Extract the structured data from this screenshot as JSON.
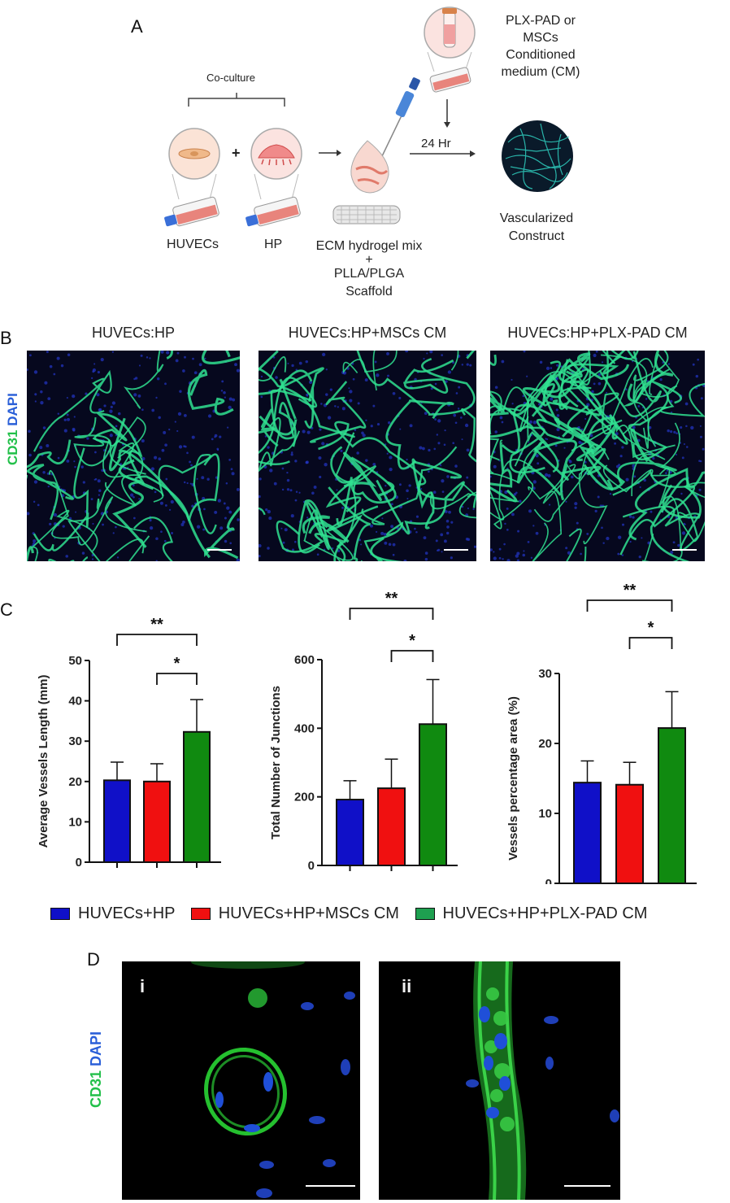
{
  "panels": {
    "a": "A",
    "b": "B",
    "c": "C",
    "d": "D"
  },
  "schematic": {
    "co_culture": "Co-culture",
    "huvecs": "HUVECs",
    "hp": "HP",
    "plus": "+",
    "ecm_line1": "ECM hydrogel mix",
    "ecm_line2": "+",
    "ecm_line3": "PLLA/PLGA",
    "ecm_line4": "Scaffold",
    "cm_line1": "PLX-PAD or",
    "cm_line2": "MSCs",
    "cm_line3": "Conditioned",
    "cm_line4": "medium (CM)",
    "time": "24 Hr",
    "result_line1": "Vascularized",
    "result_line2": "Construct"
  },
  "images_b": {
    "stain_green": "CD31",
    "stain_blue": "DAPI",
    "titles": [
      "HUVECs:HP",
      "HUVECs:HP+MSCs CM",
      "HUVECs:HP+PLX-PAD CM"
    ]
  },
  "chart_data": [
    {
      "type": "bar",
      "ylabel": "Average Vessels Length (mm)",
      "ylim": [
        0,
        50
      ],
      "yticks": [
        0,
        10,
        20,
        30,
        40,
        50
      ],
      "categories": [
        "HUVECs+HP",
        "HUVECs+HP+MSCs CM",
        "HUVECs+HP+PLX-PAD CM"
      ],
      "values": [
        20.3,
        20.0,
        32.3
      ],
      "errors": [
        4.5,
        4.4,
        8.0
      ],
      "significance": [
        {
          "from": 0,
          "to": 2,
          "label": "**"
        },
        {
          "from": 1,
          "to": 2,
          "label": "*"
        }
      ]
    },
    {
      "type": "bar",
      "ylabel": "Total Number of Junctions",
      "ylim": [
        0,
        600
      ],
      "yticks": [
        0,
        200,
        400,
        600
      ],
      "categories": [
        "HUVECs+HP",
        "HUVECs+HP+MSCs CM",
        "HUVECs+HP+PLX-PAD CM"
      ],
      "values": [
        192,
        225,
        412
      ],
      "errors": [
        55,
        85,
        130
      ],
      "significance": [
        {
          "from": 0,
          "to": 2,
          "label": "**"
        },
        {
          "from": 1,
          "to": 2,
          "label": "*"
        }
      ]
    },
    {
      "type": "bar",
      "ylabel": "Vessels percentage area (%)",
      "ylim": [
        0,
        30
      ],
      "yticks": [
        0,
        10,
        20,
        30
      ],
      "categories": [
        "HUVECs+HP",
        "HUVECs+HP+MSCs CM",
        "HUVECs+HP+PLX-PAD CM"
      ],
      "values": [
        14.4,
        14.1,
        22.2
      ],
      "errors": [
        3.1,
        3.2,
        5.2
      ],
      "significance": [
        {
          "from": 0,
          "to": 2,
          "label": "**"
        },
        {
          "from": 1,
          "to": 2,
          "label": "*"
        }
      ]
    }
  ],
  "legend": {
    "items": [
      {
        "label": "HUVECs+HP",
        "color": "#1010c8"
      },
      {
        "label": "HUVECs+HP+MSCs CM",
        "color": "#f01010"
      },
      {
        "label": "HUVECs+HP+PLX-PAD CM",
        "color": "#108a10"
      }
    ]
  },
  "images_d": {
    "stain_green": "CD31",
    "stain_blue": "DAPI",
    "labels": [
      "i",
      "ii"
    ]
  }
}
